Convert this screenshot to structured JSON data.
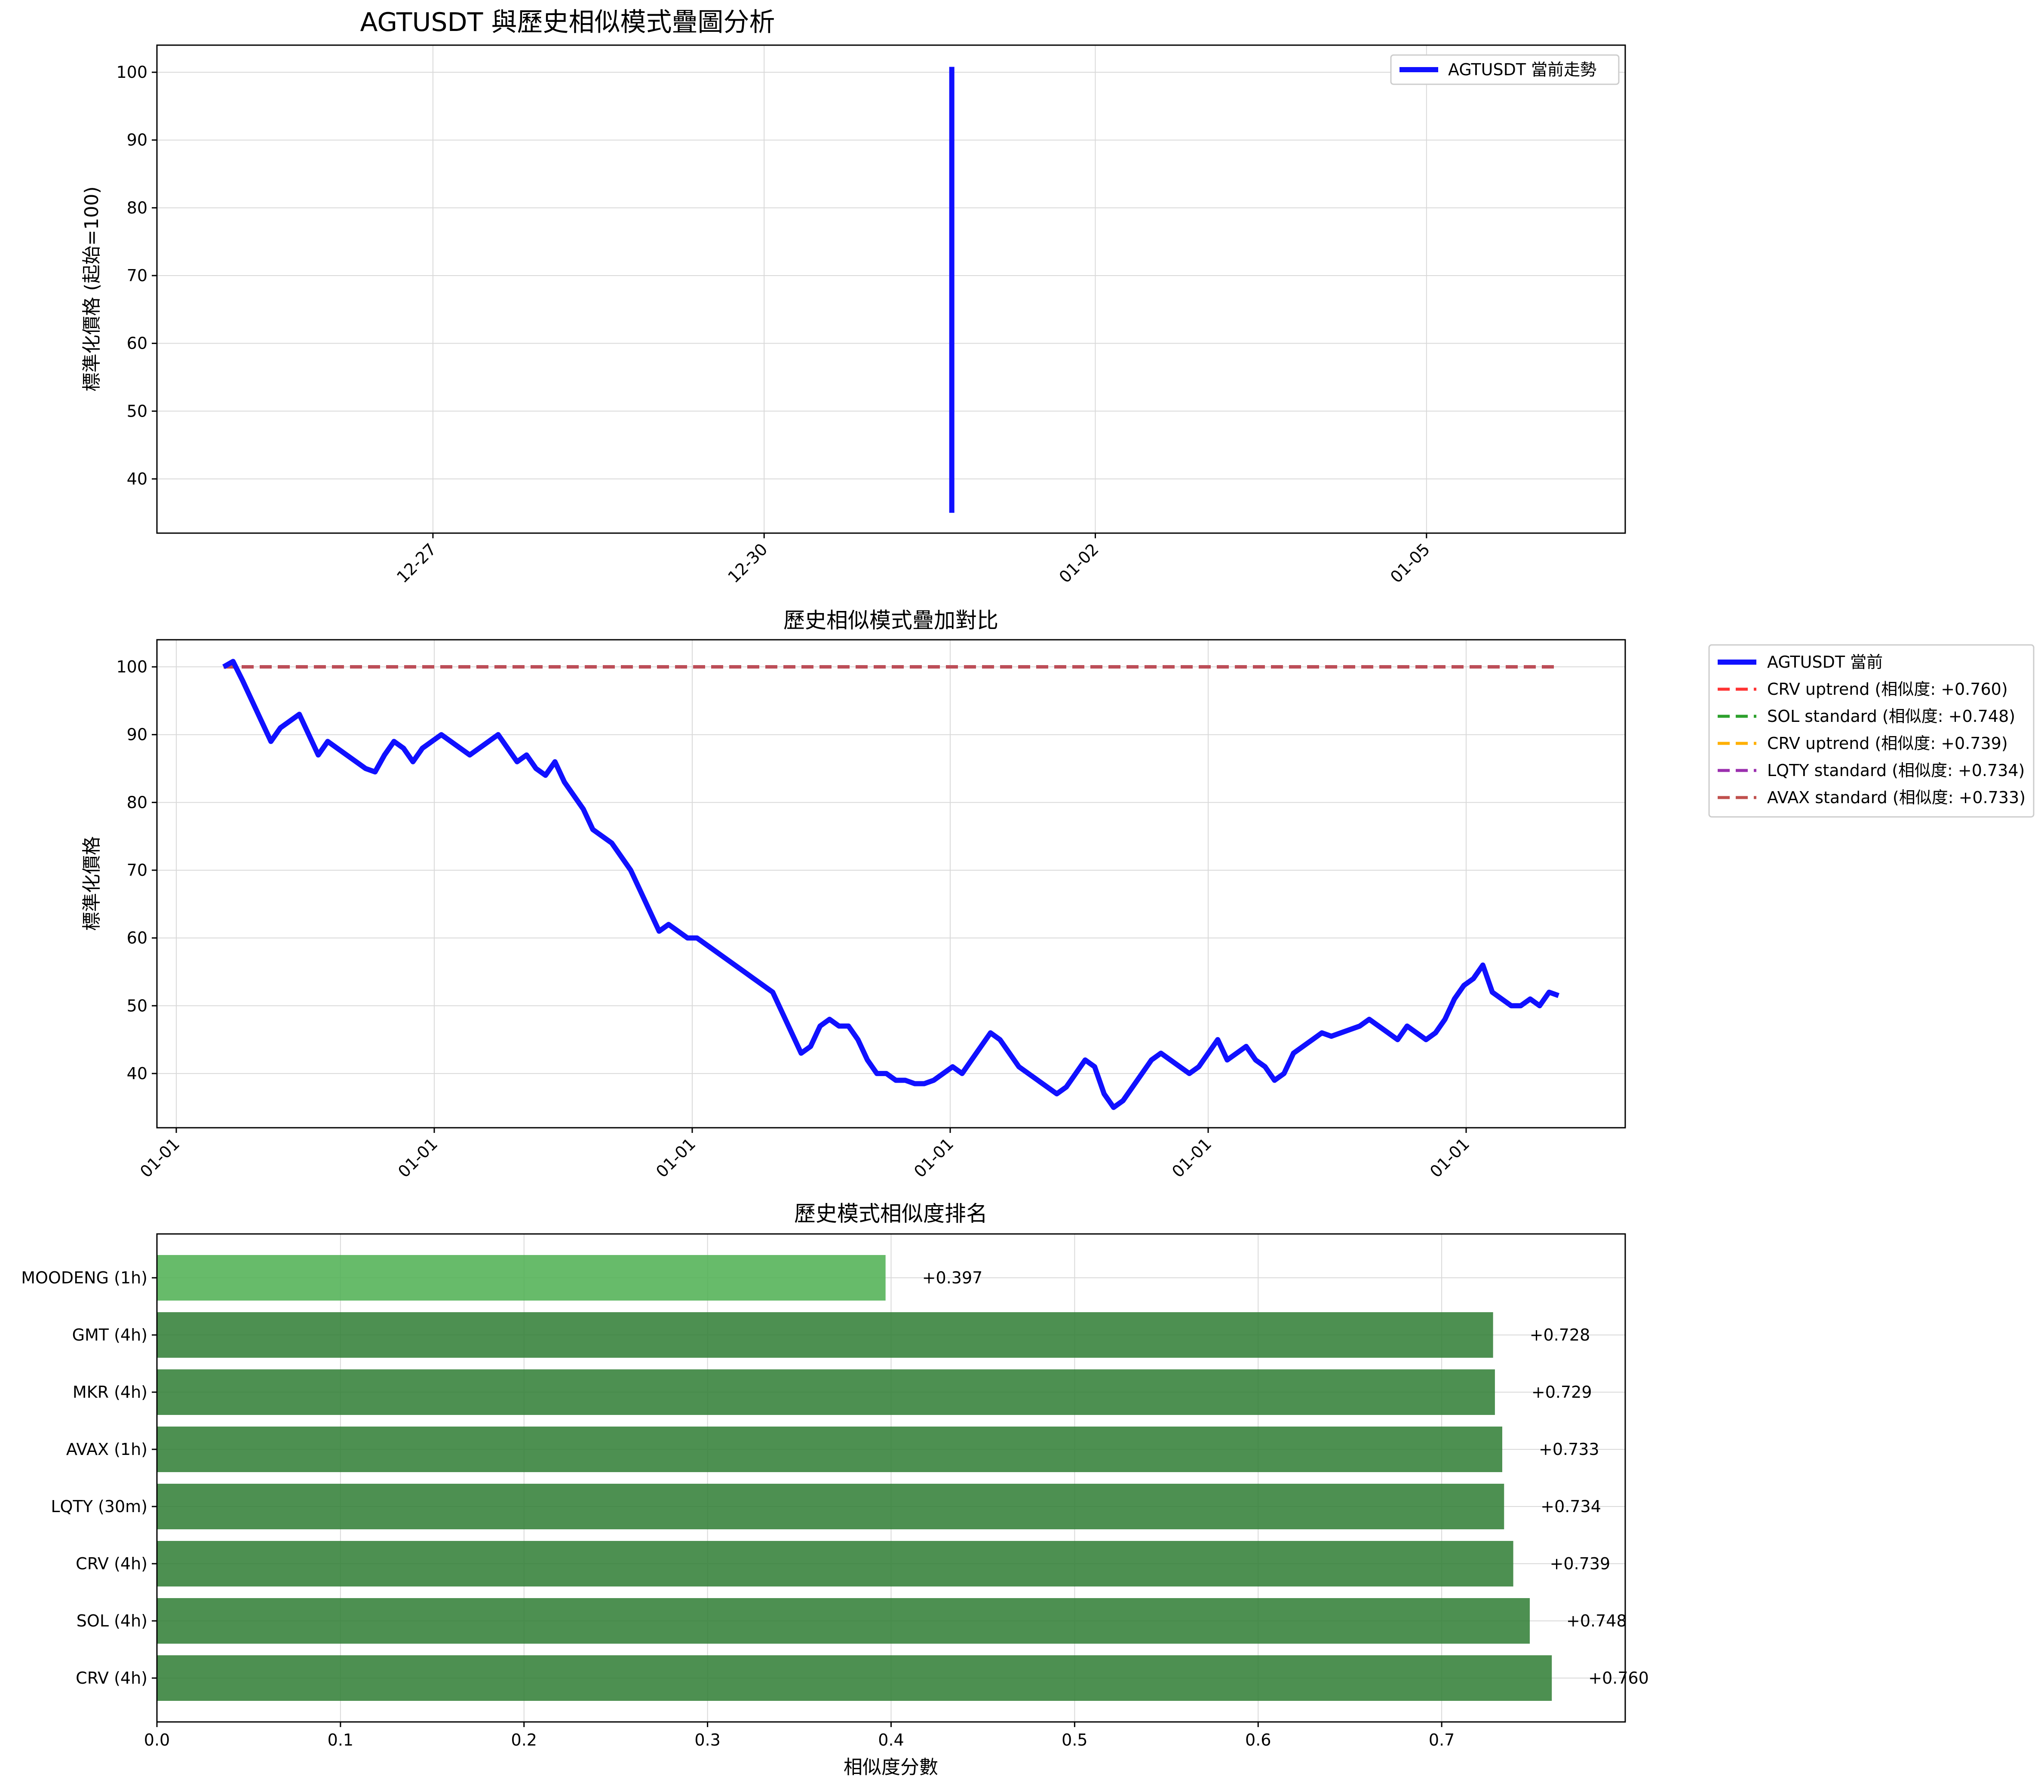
{
  "figure_title": "AGTUSDT 與歷史相似模式疊圖分析",
  "colors": {
    "current": "#1010ff",
    "grid": "#d9d9d9",
    "bar": "#2e7d32",
    "bar_top": "#4caf50"
  },
  "chart_data": [
    {
      "type": "line",
      "title": "",
      "xlabel": "",
      "ylabel": "標準化價格 (起始=100)",
      "x_ticks": [
        "12-27",
        "12-30",
        "01-02",
        "01-05"
      ],
      "yticks": [
        40,
        50,
        60,
        70,
        80,
        90,
        100
      ],
      "ylim": [
        32,
        104
      ],
      "grid": true,
      "legend_position": "upper right",
      "series": [
        {
          "name": "AGTUSDT 當前走勢",
          "color": "#1010ff",
          "x": [
            "12-31",
            "12-31"
          ],
          "y": [
            35,
            100.8
          ]
        }
      ]
    },
    {
      "type": "line",
      "title": "歷史相似模式疊加對比",
      "xlabel": "",
      "ylabel": "標準化價格",
      "x_ticks": [
        "01-01",
        "01-01",
        "01-01",
        "01-01",
        "01-01",
        "01-01"
      ],
      "yticks": [
        40,
        50,
        60,
        70,
        80,
        90,
        100
      ],
      "ylim": [
        32,
        104
      ],
      "grid": true,
      "legend_position": "outside right",
      "series": [
        {
          "name": "AGTUSDT 當前",
          "color": "#1010ff",
          "style": "solid",
          "y": [
            100,
            100.8,
            98,
            95,
            92,
            89,
            91,
            92,
            93,
            90,
            87,
            89,
            88,
            87,
            86,
            85,
            84.5,
            87,
            89,
            88,
            86,
            88,
            89,
            90,
            89,
            88,
            87,
            88,
            89,
            90,
            88,
            86,
            87,
            85,
            84,
            86,
            83,
            81,
            79,
            76,
            75,
            74,
            72,
            70,
            67,
            64,
            61,
            62,
            61,
            60,
            60,
            59,
            58,
            57,
            56,
            55,
            54,
            53,
            52,
            49,
            46,
            43,
            44,
            47,
            48,
            47,
            47,
            45,
            42,
            40,
            40,
            39,
            39,
            38.5,
            38.5,
            39,
            40,
            41,
            40,
            42,
            44,
            46,
            45,
            43,
            41,
            40,
            39,
            38,
            37,
            38,
            40,
            42,
            41,
            37,
            35,
            36,
            38,
            40,
            42,
            43,
            42,
            41,
            40,
            41,
            43,
            45,
            42,
            43,
            44,
            42,
            41,
            39,
            40,
            43,
            44,
            45,
            46,
            45.5,
            46,
            46.5,
            47,
            48,
            47,
            46,
            45,
            47,
            46,
            45,
            46,
            48,
            51,
            53,
            54,
            56,
            52,
            51,
            50,
            50,
            51,
            50,
            52,
            51.5
          ]
        },
        {
          "name": "CRV uptrend (相似度: +0.760)",
          "color": "#ff3333",
          "style": "dashed",
          "y": [
            100,
            100
          ]
        },
        {
          "name": "SOL standard (相似度: +0.748)",
          "color": "#2ca02c",
          "style": "dashed",
          "y": [
            100,
            100
          ]
        },
        {
          "name": "CRV uptrend (相似度: +0.739)",
          "color": "#ffb000",
          "style": "dashed",
          "y": [
            100,
            100
          ]
        },
        {
          "name": "LQTY standard (相似度: +0.734)",
          "color": "#9b2fae",
          "style": "dashed",
          "y": [
            100,
            100
          ]
        },
        {
          "name": "AVAX standard (相似度: +0.733)",
          "color": "#c0504d",
          "style": "dashed",
          "y": [
            100,
            100
          ]
        }
      ]
    },
    {
      "type": "bar",
      "orientation": "horizontal",
      "title": "歷史模式相似度排名",
      "xlabel": "相似度分數",
      "ylabel": "",
      "xlim": [
        0,
        0.8
      ],
      "xticks": [
        0.0,
        0.1,
        0.2,
        0.3,
        0.4,
        0.5,
        0.6,
        0.7
      ],
      "grid": true,
      "categories": [
        "MOODENG (1h)",
        "GMT (4h)",
        "MKR (4h)",
        "AVAX (1h)",
        "LQTY (30m)",
        "CRV (4h)",
        "SOL (4h)",
        "CRV (4h)"
      ],
      "values": [
        0.397,
        0.728,
        0.729,
        0.733,
        0.734,
        0.739,
        0.748,
        0.76
      ],
      "labels": [
        "+0.397",
        "+0.728",
        "+0.729",
        "+0.733",
        "+0.734",
        "+0.739",
        "+0.748",
        "+0.760"
      ]
    }
  ]
}
